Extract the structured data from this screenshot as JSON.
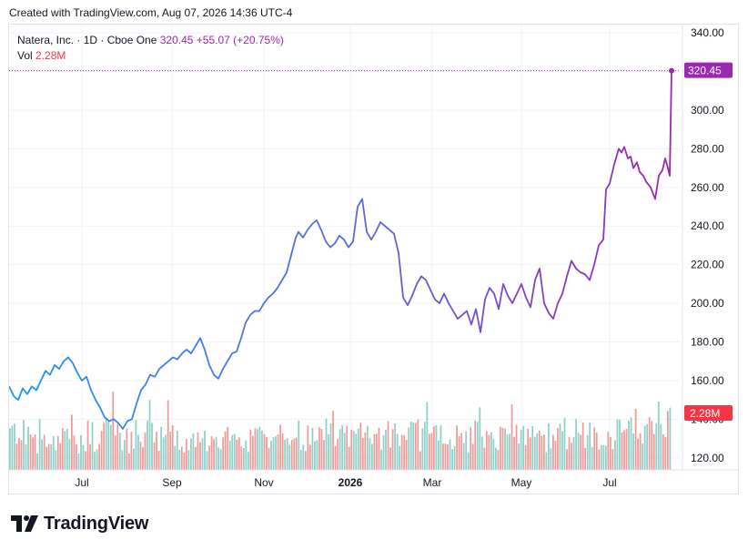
{
  "header": {
    "created_text": "Created with TradingView.com, Aug 07, 2026 14:36 UTC-4"
  },
  "legend": {
    "symbol": "Natera, Inc. · 1D · Cboe One",
    "last": "320.45",
    "change": "+55.07 (+20.75%)",
    "vol_label": "Vol",
    "vol_value": "2.28M"
  },
  "brand": {
    "name": "TradingView",
    "icon": "tradingview-logo-icon"
  },
  "colors": {
    "line_start": "#2196f3",
    "line_mid": "#5b6be0",
    "line_end": "#9c27b0",
    "vol_up": "#8fd0c8",
    "vol_down": "#f29a9a",
    "price_label": "#9c27b0",
    "vol_label": "#f23645"
  },
  "chart_data": {
    "type": "line",
    "series": [
      {
        "name": "Natera, Inc.",
        "points": [
          [
            0,
            157
          ],
          [
            5,
            152
          ],
          [
            10,
            150
          ],
          [
            15,
            156
          ],
          [
            20,
            153
          ],
          [
            25,
            157
          ],
          [
            30,
            155
          ],
          [
            35,
            160
          ],
          [
            40,
            165
          ],
          [
            45,
            163
          ],
          [
            50,
            168
          ],
          [
            55,
            166
          ],
          [
            60,
            170
          ],
          [
            65,
            172
          ],
          [
            70,
            169
          ],
          [
            75,
            164
          ],
          [
            80,
            160
          ],
          [
            85,
            162
          ],
          [
            90,
            155
          ],
          [
            95,
            150
          ],
          [
            100,
            146
          ],
          [
            105,
            141
          ],
          [
            110,
            139
          ],
          [
            115,
            140
          ],
          [
            120,
            138
          ],
          [
            125,
            135
          ],
          [
            130,
            139
          ],
          [
            135,
            140
          ],
          [
            140,
            148
          ],
          [
            145,
            155
          ],
          [
            150,
            158
          ],
          [
            155,
            163
          ],
          [
            160,
            162
          ],
          [
            165,
            166
          ],
          [
            170,
            168
          ],
          [
            175,
            170
          ],
          [
            180,
            172
          ],
          [
            185,
            171
          ],
          [
            190,
            174
          ],
          [
            195,
            176
          ],
          [
            200,
            174
          ],
          [
            205,
            178
          ],
          [
            210,
            182
          ],
          [
            215,
            176
          ],
          [
            220,
            168
          ],
          [
            225,
            163
          ],
          [
            230,
            161
          ],
          [
            235,
            166
          ],
          [
            240,
            170
          ],
          [
            245,
            174
          ],
          [
            250,
            175
          ],
          [
            255,
            182
          ],
          [
            260,
            190
          ],
          [
            265,
            194
          ],
          [
            270,
            196
          ],
          [
            275,
            196
          ],
          [
            280,
            200
          ],
          [
            285,
            203
          ],
          [
            290,
            205
          ],
          [
            295,
            208
          ],
          [
            300,
            212
          ],
          [
            305,
            216
          ],
          [
            310,
            225
          ],
          [
            315,
            234
          ],
          [
            318,
            237
          ],
          [
            323,
            234
          ],
          [
            328,
            238
          ],
          [
            333,
            241
          ],
          [
            338,
            243
          ],
          [
            343,
            238
          ],
          [
            348,
            232
          ],
          [
            353,
            229
          ],
          [
            358,
            231
          ],
          [
            363,
            235
          ],
          [
            368,
            233
          ],
          [
            373,
            229
          ],
          [
            378,
            232
          ],
          [
            383,
            250
          ],
          [
            388,
            254
          ],
          [
            393,
            237
          ],
          [
            398,
            233
          ],
          [
            403,
            237
          ],
          [
            408,
            242
          ],
          [
            413,
            240
          ],
          [
            418,
            238
          ],
          [
            423,
            236
          ],
          [
            428,
            226
          ],
          [
            433,
            203
          ],
          [
            438,
            199
          ],
          [
            443,
            204
          ],
          [
            448,
            210
          ],
          [
            453,
            214
          ],
          [
            458,
            212
          ],
          [
            463,
            207
          ],
          [
            468,
            202
          ],
          [
            473,
            200
          ],
          [
            478,
            205
          ],
          [
            483,
            200
          ],
          [
            488,
            196
          ],
          [
            493,
            192
          ],
          [
            498,
            194
          ],
          [
            503,
            196
          ],
          [
            508,
            189
          ],
          [
            513,
            197
          ],
          [
            518,
            185
          ],
          [
            523,
            202
          ],
          [
            528,
            208
          ],
          [
            533,
            205
          ],
          [
            538,
            197
          ],
          [
            543,
            210
          ],
          [
            548,
            204
          ],
          [
            553,
            200
          ],
          [
            558,
            205
          ],
          [
            563,
            210
          ],
          [
            568,
            203
          ],
          [
            573,
            198
          ],
          [
            578,
            212
          ],
          [
            583,
            218
          ],
          [
            588,
            200
          ],
          [
            593,
            195
          ],
          [
            598,
            192
          ],
          [
            603,
            200
          ],
          [
            608,
            205
          ],
          [
            613,
            214
          ],
          [
            618,
            222
          ],
          [
            623,
            218
          ],
          [
            628,
            216
          ],
          [
            633,
            215
          ],
          [
            638,
            212
          ],
          [
            643,
            220
          ],
          [
            648,
            230
          ],
          [
            653,
            233
          ],
          [
            656,
            259
          ],
          [
            660,
            262
          ],
          [
            665,
            272
          ],
          [
            670,
            280
          ],
          [
            673,
            278
          ],
          [
            676,
            281
          ],
          [
            680,
            275
          ],
          [
            683,
            276
          ],
          [
            686,
            270
          ],
          [
            690,
            273
          ],
          [
            693,
            268
          ],
          [
            697,
            266
          ],
          [
            700,
            263
          ],
          [
            705,
            260
          ],
          [
            710,
            254
          ],
          [
            714,
            266
          ],
          [
            718,
            269
          ],
          [
            721,
            275
          ],
          [
            724,
            270
          ],
          [
            726,
            266
          ],
          [
            728,
            320.45
          ]
        ]
      }
    ],
    "volume_unit": "M",
    "volume_scale_max": 4.0,
    "volume_bars": [
      1.52,
      1.61,
      1.69,
      0.96,
      1.16,
      1.09,
      1.83,
      0.93,
      1.58,
      1.3,
      1.19,
      1.3,
      0.6,
      1.86,
      1.12,
      1.28,
      0.84,
      0.95,
      0.93,
      1.24,
      0.71,
      1.24,
      0.98,
      1.53,
      1.42,
      1.5,
      1.13,
      2.02,
      1.26,
      0.94,
      0.6,
      1.27,
      0.91,
      0.68,
      1.81,
      0.93,
      1.75,
      0.66,
      0.75,
      0.95,
      1.43,
      1.72,
      1.92,
      1.83,
      1.65,
      2.86,
      1.26,
      1.68,
      1.36,
      0.72,
      1.1,
      1.52,
      0.6,
      1.4,
      0.78,
      1.83,
      1.29,
      1.03,
      0.83,
      1.37,
      1.81,
      2.56,
      1.72,
      1.01,
      1.4,
      0.7,
      1.58,
      1.19,
      1.28,
      2.55,
      1.4,
      1.63,
      0.88,
      1.43,
      0.74,
      0.85,
      0.64,
      1.13,
      0.72,
      1.15,
      1.34,
      0.84,
      1.37,
      1.02,
      1.15,
      1.43,
      0.69,
      0.89,
      1.23,
      1.12,
      1.21,
      0.82,
      0.76,
      1.19,
      1.41,
      1.57,
      1.06,
      1.27,
      1.31,
      1.1,
      1.19,
      0.86,
      0.8,
      1.08,
      0.66,
      1.47,
      1.25,
      1.52,
      1.49,
      1.57,
      1.44,
      1.31,
      1.2,
      0.81,
      1.06,
      1.2,
      1.23,
      1.3,
      1.65,
      1.34,
      1.1,
      1.16,
      0.92,
      1.09,
      1.14,
      1.18,
      1.8,
      0.73,
      0.92,
      0.69,
      1.62,
      0.92,
      1.54,
      1.05,
      1.09,
      1.56,
      1.5,
      1.09,
      1.88,
      1.3,
      1.7,
      2.17,
      0.88,
      1.13,
      1.49,
      1.64,
      1.35,
      1.62,
      0.84,
      1.47,
      1.42,
      1.32,
      1.51,
      1.73,
      1.17,
      1.37,
      1.61,
      1.16,
      0.95,
      1.3,
      1.32,
      1.54,
      0.74,
      1.27,
      1.47,
      1.79,
      0.82,
      1.49,
      1.7,
      1.31,
      0.88,
      1.28,
      1.26,
      1.1,
      1.55,
      1.77,
      1.74,
      1.72,
      1.84,
      0.68,
      1.52,
      1.76,
      2.48,
      1.32,
      1.35,
      1.59,
      1.63,
      1.08,
      1.63,
      0.96,
      0.96,
      0.93,
      1.12,
      0.76,
      0.86,
      1.62,
      1.24,
      1.34,
      0.98,
      1.41,
      0.65,
      1.56,
      0.95,
      1.81,
      1.76,
      2.29,
      1.22,
      0.81,
      1.41,
      1.28,
      1.38,
      1.14,
      0.81,
      0.73,
      1.57,
      1.53,
      1.51,
      1.29,
      1.32,
      2.4,
      1.21,
      1.65,
      0.97,
      1.46,
      1.61,
      0.91,
      1.5,
      1.19,
      1.6,
      1.21,
      1.34,
      1.44,
      1.25,
      1.29,
      0.65,
      1.71,
      0.79,
      1.28,
      1.06,
      1.53,
      1.69,
      1.42,
      1.91,
      0.75,
      1.21,
      0.99,
      1.2,
      1.86,
      1.36,
      1.28,
      1.73,
      0.8,
      1.27,
      1.74,
      0.83,
      1.55,
      1.36,
      0.75,
      0.91,
      0.91,
      0.88,
      1.39,
      1.2,
      0.76,
      1.09,
      1.84,
      1.84,
      1.37,
      1.45,
      1.5,
      1.8,
      1.92,
      1.33,
      2.24,
      1.14,
      1.34,
      0.96,
      1.61,
      1.67,
      1.93,
      1.79,
      1.31,
      1.71,
      2.5,
      1.68,
      1.3,
      1.2,
      2.15,
      2.28
    ],
    "x_tick_labels": [
      {
        "label": "Jul",
        "x": 80,
        "bold": false
      },
      {
        "label": "Sep",
        "x": 179,
        "bold": false
      },
      {
        "label": "Nov",
        "x": 280,
        "bold": false
      },
      {
        "label": "2026",
        "x": 375,
        "bold": true
      },
      {
        "label": "Mar",
        "x": 465,
        "bold": false
      },
      {
        "label": "May",
        "x": 563,
        "bold": false
      },
      {
        "label": "Jul",
        "x": 660,
        "bold": false
      }
    ],
    "y_ticks": [
      "340.00",
      "320.00",
      "300.00",
      "280.00",
      "260.00",
      "240.00",
      "220.00",
      "200.00",
      "180.00",
      "160.00",
      "140.00",
      "120.00"
    ],
    "ylim": [
      118,
      341
    ],
    "price_label": "320.45",
    "volume_label": "2.28M",
    "last_price": 320.45,
    "grid": true
  }
}
